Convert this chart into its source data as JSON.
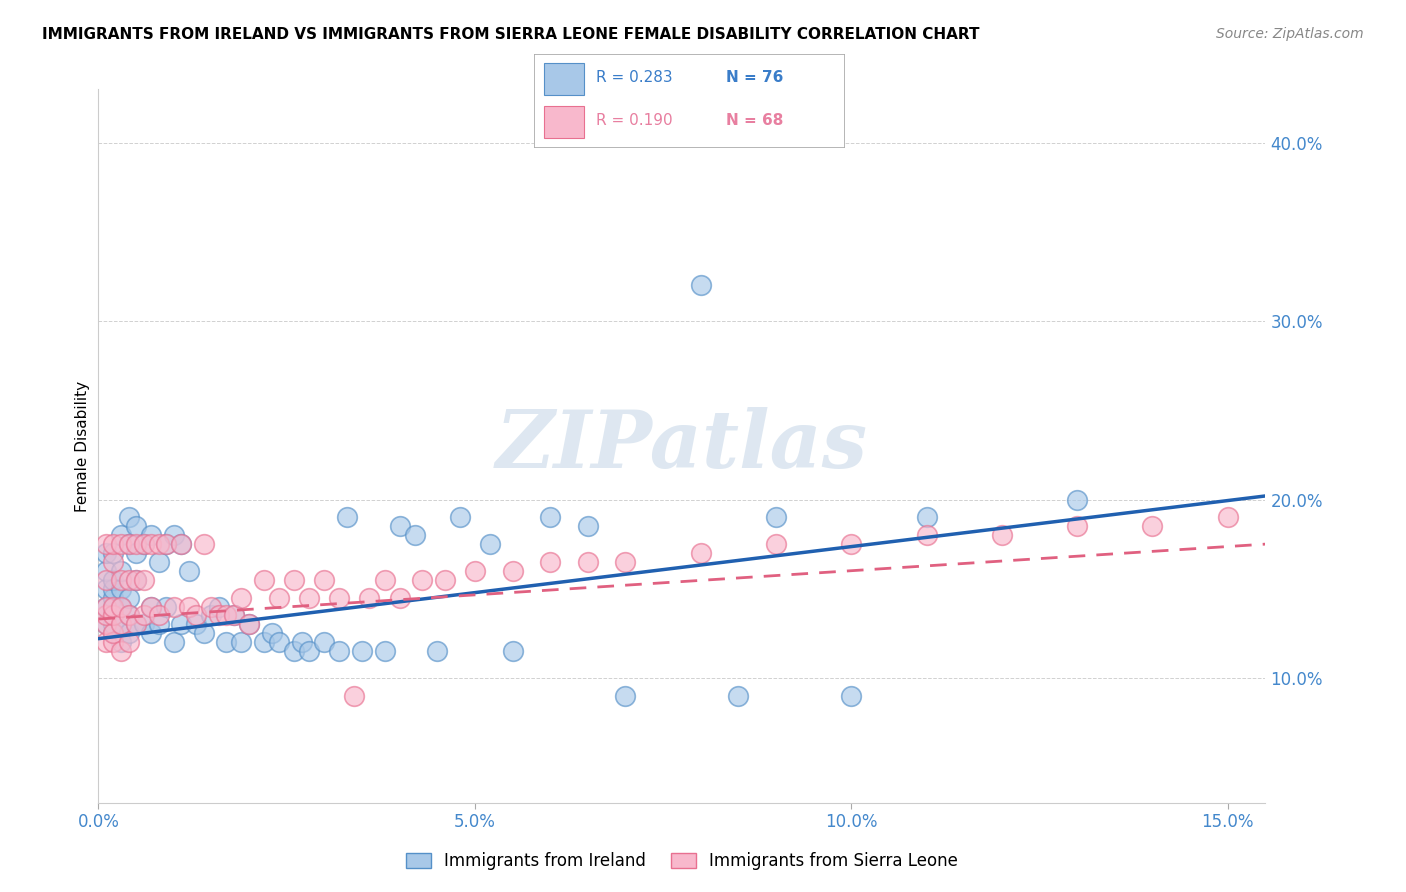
{
  "title": "IMMIGRANTS FROM IRELAND VS IMMIGRANTS FROM SIERRA LEONE FEMALE DISABILITY CORRELATION CHART",
  "source": "Source: ZipAtlas.com",
  "ylabel": "Female Disability",
  "xlim": [
    0.0,
    0.155
  ],
  "ylim": [
    0.03,
    0.43
  ],
  "ireland_color": "#a8c8e8",
  "ireland_edge": "#5590c8",
  "sierra_leone_color": "#f8b8cc",
  "sierra_leone_edge": "#e87090",
  "ireland_line_color": "#2060b0",
  "sierra_leone_line_color": "#e06080",
  "ytick_positions": [
    0.1,
    0.2,
    0.3,
    0.4
  ],
  "ytick_labels": [
    "10.0%",
    "20.0%",
    "30.0%",
    "40.0%"
  ],
  "xtick_positions": [
    0.0,
    0.05,
    0.1,
    0.15
  ],
  "xtick_labels": [
    "0.0%",
    "5.0%",
    "10.0%",
    "15.0%"
  ],
  "ireland_x": [
    0.001,
    0.001,
    0.001,
    0.001,
    0.001,
    0.002,
    0.002,
    0.002,
    0.002,
    0.002,
    0.002,
    0.002,
    0.002,
    0.003,
    0.003,
    0.003,
    0.003,
    0.003,
    0.003,
    0.004,
    0.004,
    0.004,
    0.004,
    0.004,
    0.005,
    0.005,
    0.005,
    0.005,
    0.006,
    0.006,
    0.007,
    0.007,
    0.007,
    0.008,
    0.008,
    0.009,
    0.009,
    0.01,
    0.01,
    0.011,
    0.011,
    0.012,
    0.013,
    0.014,
    0.015,
    0.016,
    0.017,
    0.018,
    0.019,
    0.02,
    0.022,
    0.023,
    0.024,
    0.026,
    0.027,
    0.028,
    0.03,
    0.032,
    0.033,
    0.035,
    0.038,
    0.04,
    0.042,
    0.045,
    0.048,
    0.052,
    0.055,
    0.06,
    0.065,
    0.07,
    0.08,
    0.085,
    0.09,
    0.1,
    0.11,
    0.13
  ],
  "ireland_y": [
    0.13,
    0.14,
    0.15,
    0.16,
    0.17,
    0.125,
    0.13,
    0.135,
    0.14,
    0.145,
    0.15,
    0.155,
    0.17,
    0.12,
    0.13,
    0.14,
    0.15,
    0.16,
    0.18,
    0.125,
    0.135,
    0.145,
    0.175,
    0.19,
    0.13,
    0.155,
    0.17,
    0.185,
    0.13,
    0.175,
    0.125,
    0.14,
    0.18,
    0.13,
    0.165,
    0.14,
    0.175,
    0.12,
    0.18,
    0.13,
    0.175,
    0.16,
    0.13,
    0.125,
    0.135,
    0.14,
    0.12,
    0.135,
    0.12,
    0.13,
    0.12,
    0.125,
    0.12,
    0.115,
    0.12,
    0.115,
    0.12,
    0.115,
    0.19,
    0.115,
    0.115,
    0.185,
    0.18,
    0.115,
    0.19,
    0.175,
    0.115,
    0.19,
    0.185,
    0.09,
    0.32,
    0.09,
    0.19,
    0.09,
    0.19,
    0.2
  ],
  "sierra_x": [
    0.001,
    0.001,
    0.001,
    0.001,
    0.001,
    0.001,
    0.002,
    0.002,
    0.002,
    0.002,
    0.002,
    0.002,
    0.003,
    0.003,
    0.003,
    0.003,
    0.003,
    0.004,
    0.004,
    0.004,
    0.004,
    0.005,
    0.005,
    0.005,
    0.006,
    0.006,
    0.006,
    0.007,
    0.007,
    0.008,
    0.008,
    0.009,
    0.01,
    0.011,
    0.012,
    0.013,
    0.014,
    0.015,
    0.016,
    0.017,
    0.018,
    0.019,
    0.02,
    0.022,
    0.024,
    0.026,
    0.028,
    0.03,
    0.032,
    0.034,
    0.036,
    0.038,
    0.04,
    0.043,
    0.046,
    0.05,
    0.055,
    0.06,
    0.065,
    0.07,
    0.08,
    0.09,
    0.1,
    0.11,
    0.12,
    0.13,
    0.14,
    0.15
  ],
  "sierra_y": [
    0.12,
    0.13,
    0.135,
    0.14,
    0.155,
    0.175,
    0.12,
    0.125,
    0.135,
    0.14,
    0.165,
    0.175,
    0.115,
    0.13,
    0.14,
    0.155,
    0.175,
    0.12,
    0.135,
    0.155,
    0.175,
    0.13,
    0.155,
    0.175,
    0.135,
    0.155,
    0.175,
    0.14,
    0.175,
    0.135,
    0.175,
    0.175,
    0.14,
    0.175,
    0.14,
    0.135,
    0.175,
    0.14,
    0.135,
    0.135,
    0.135,
    0.145,
    0.13,
    0.155,
    0.145,
    0.155,
    0.145,
    0.155,
    0.145,
    0.09,
    0.145,
    0.155,
    0.145,
    0.155,
    0.155,
    0.16,
    0.16,
    0.165,
    0.165,
    0.165,
    0.17,
    0.175,
    0.175,
    0.18,
    0.18,
    0.185,
    0.185,
    0.19
  ],
  "ireland_line_x0": 0.0,
  "ireland_line_y0": 0.122,
  "ireland_line_x1": 0.155,
  "ireland_line_y1": 0.202,
  "sierra_line_x0": 0.0,
  "sierra_line_y0": 0.133,
  "sierra_line_x1": 0.155,
  "sierra_line_y1": 0.175
}
